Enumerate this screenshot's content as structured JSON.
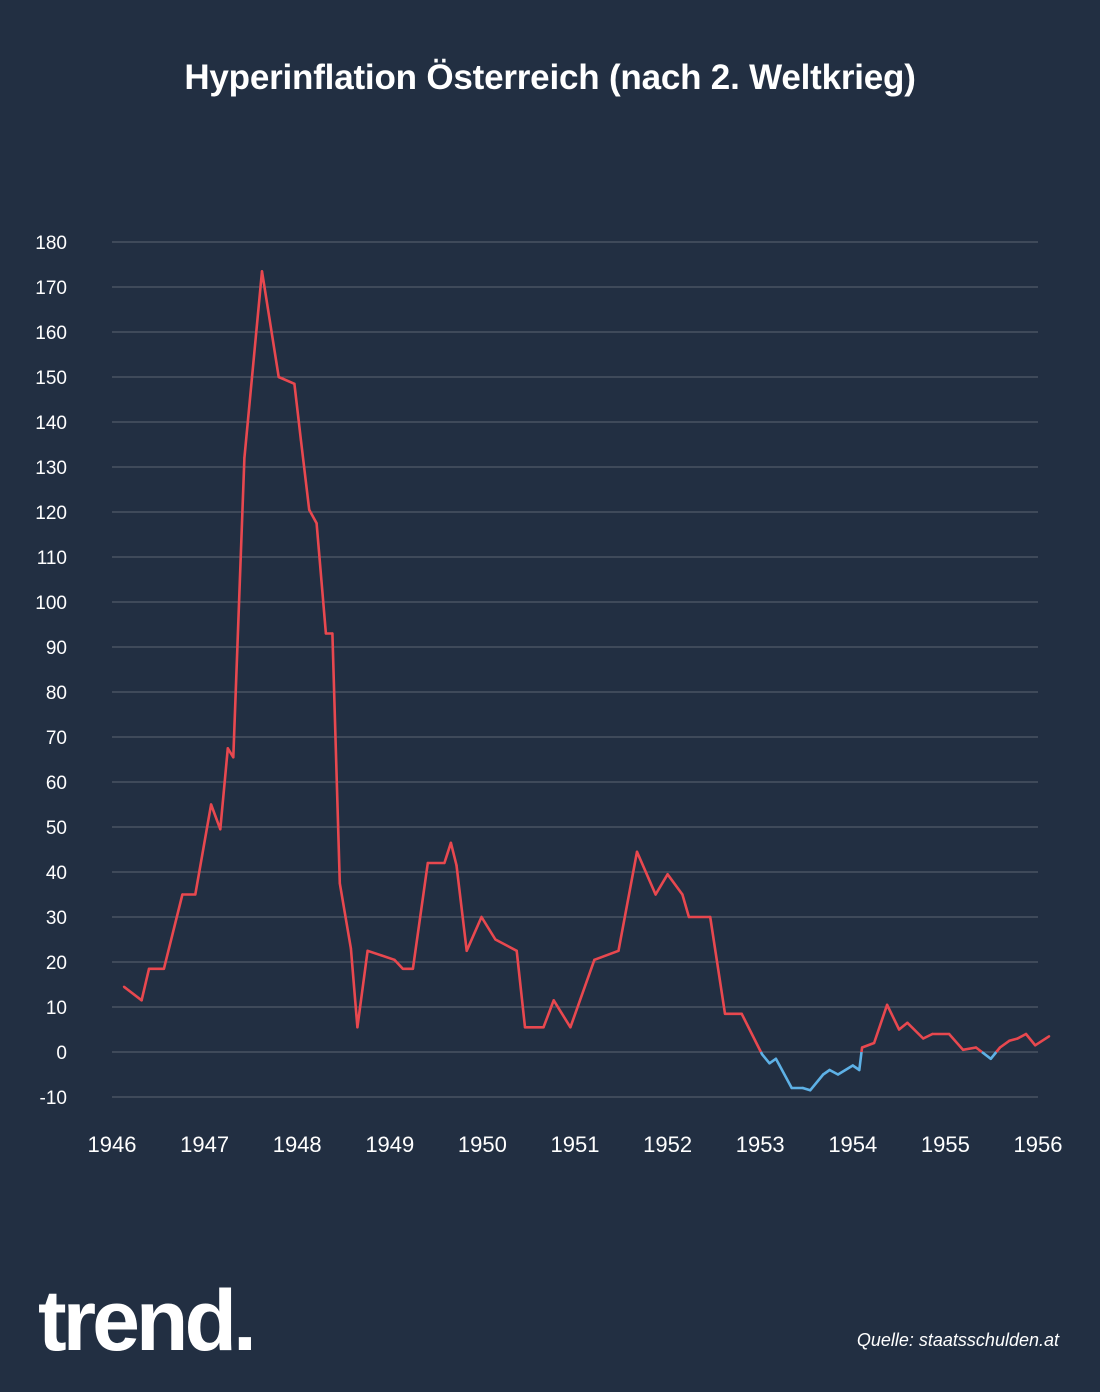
{
  "title": "Hyperinflation Österreich (nach 2. Weltkrieg)",
  "brand": "trend.",
  "source": "Quelle: staatsschulden.at",
  "colors": {
    "background": "#222f42",
    "positive": "#e8484f",
    "negative": "#5eb1e6",
    "grid": "#5c6572",
    "text": "#ffffff"
  },
  "chart_data": {
    "type": "line",
    "title": "Hyperinflation Österreich (nach 2. Weltkrieg)",
    "xlabel": "",
    "ylabel": "",
    "xlim": [
      1946,
      1956
    ],
    "ylim": [
      -10,
      180
    ],
    "grid": true,
    "legend": "none",
    "x_ticks": [
      "1946",
      "1947",
      "1948",
      "1949",
      "1950",
      "1951",
      "1952",
      "1953",
      "1954",
      "1955",
      "1956"
    ],
    "y_ticks": [
      "180",
      "170",
      "160",
      "150",
      "140",
      "130",
      "120",
      "110",
      "100",
      "90",
      "80",
      "70",
      "60",
      "50",
      "40",
      "30",
      "20",
      "10",
      "0",
      "-10"
    ],
    "series": [
      {
        "x": [
          1946.13,
          1946.32,
          1946.4,
          1946.56,
          1946.76,
          1946.9,
          1947.07,
          1947.17,
          1947.25,
          1947.31,
          1947.43,
          1947.62,
          1947.8,
          1947.97,
          1948.04,
          1948.13,
          1948.21,
          1948.31,
          1948.38,
          1948.46,
          1948.58,
          1948.65,
          1948.76,
          1949.05,
          1949.14,
          1949.25,
          1949.41,
          1949.59,
          1949.66,
          1949.72,
          1949.83,
          1949.99,
          1950.14,
          1950.37,
          1950.46,
          1950.66,
          1950.77,
          1950.95,
          1951.21,
          1951.47,
          1951.67,
          1951.87,
          1952.0,
          1952.16,
          1952.23,
          1952.46,
          1952.62,
          1952.8,
          1953.02,
          1953.1,
          1953.17,
          1953.21,
          1953.34,
          1953.46,
          1953.54,
          1953.68,
          1953.75,
          1953.84,
          1954.0,
          1954.07,
          1954.1,
          1954.23,
          1954.37,
          1954.5,
          1954.59,
          1954.76,
          1954.86,
          1955.04,
          1955.19,
          1955.33,
          1955.49,
          1955.59,
          1955.69,
          1955.78,
          1955.87,
          1955.97,
          1956.12
        ],
        "values": [
          14.5,
          11.5,
          18.5,
          18.5,
          35,
          35,
          55,
          49.5,
          67.5,
          65.5,
          132,
          173.5,
          150,
          148.5,
          136,
          120.5,
          117.5,
          93,
          93,
          37.5,
          23,
          5.5,
          22.5,
          20.5,
          18.5,
          18.5,
          42,
          42,
          46.5,
          41.5,
          22.5,
          30,
          25,
          22.5,
          5.5,
          5.5,
          11.5,
          5.5,
          20.5,
          22.5,
          44.5,
          35,
          39.5,
          35,
          30,
          30,
          8.5,
          8.5,
          -0.5,
          -2.5,
          -1.5,
          -3,
          -8,
          -8,
          -8.5,
          -5,
          -4,
          -5,
          -3,
          -4,
          1,
          2,
          10.5,
          5,
          6.5,
          3,
          4,
          4,
          0.5,
          1,
          -1.5,
          1,
          2.5,
          3,
          4,
          1.5,
          3.5
        ]
      }
    ]
  }
}
